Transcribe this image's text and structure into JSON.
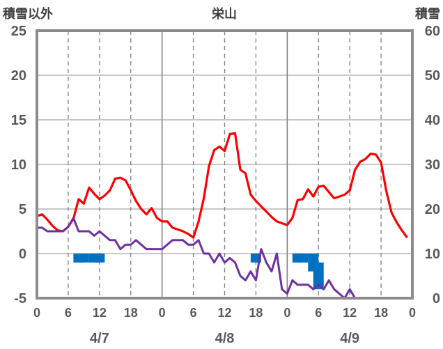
{
  "chart_data": {
    "type": "line",
    "title": "栄山",
    "y_left_label": "積雪以外",
    "y_right_label": "積雪",
    "y_left_ticks": [
      25,
      20,
      15,
      10,
      5,
      0,
      -5
    ],
    "y_right_ticks": [
      60,
      50,
      40,
      30,
      20,
      10,
      0
    ],
    "ylim_left": [
      -5,
      25
    ],
    "ylim_right": [
      0,
      60
    ],
    "x_hours": [
      0,
      72
    ],
    "x_tick_labels": [
      "0",
      "6",
      "12",
      "18",
      "0",
      "6",
      "12",
      "18",
      "0",
      "6",
      "12",
      "18",
      "0"
    ],
    "date_labels": [
      {
        "label": "4/7",
        "hour": 12
      },
      {
        "label": "4/8",
        "hour": 36
      },
      {
        "label": "4/9",
        "hour": 60
      }
    ],
    "grid": "dashed vertical at 6h intervals, solid at day boundaries, solid horizontal every 5 units",
    "series": [
      {
        "color": "#ff0000",
        "axis": "left",
        "x": [
          0,
          1,
          2,
          3,
          4,
          5,
          6,
          7,
          8,
          9,
          10,
          11,
          12,
          13,
          14,
          15,
          16,
          17,
          18,
          19,
          20,
          21,
          22,
          23,
          24,
          25,
          26,
          27,
          28,
          29,
          30,
          31,
          32,
          33,
          34,
          35,
          36,
          37,
          38,
          39,
          40,
          41,
          42,
          43,
          44,
          45,
          46,
          47,
          48,
          49,
          50,
          51,
          52,
          53,
          54,
          55,
          56,
          57,
          58,
          59,
          60,
          61,
          62,
          63,
          64,
          65,
          66,
          67,
          68,
          69,
          70,
          71
        ],
        "y": [
          4.2,
          4.4,
          3.8,
          3.1,
          2.6,
          2.5,
          3.0,
          3.9,
          6.1,
          5.6,
          7.4,
          6.7,
          6.1,
          6.5,
          7.1,
          8.4,
          8.5,
          8.2,
          7.1,
          5.9,
          5.0,
          4.4,
          5.1,
          4.0,
          3.6,
          3.6,
          2.9,
          2.7,
          2.5,
          2.2,
          1.8,
          3.6,
          6.2,
          9.8,
          11.6,
          12.0,
          11.5,
          13.4,
          13.5,
          9.4,
          9.0,
          6.6,
          5.9,
          5.3,
          4.7,
          4.1,
          3.6,
          3.4,
          3.2,
          4.0,
          6.0,
          6.1,
          7.2,
          6.4,
          7.5,
          7.6,
          6.9,
          6.2,
          6.4,
          6.6,
          7.1,
          9.4,
          10.3,
          10.6,
          11.2,
          11.1,
          10.2,
          7.0,
          4.6,
          3.5,
          2.6,
          1.8
        ]
      },
      {
        "color": "#7030a0",
        "axis": "left",
        "x": [
          0,
          1,
          2,
          3,
          4,
          5,
          6,
          7,
          8,
          9,
          10,
          11,
          12,
          13,
          14,
          15,
          16,
          17,
          18,
          19,
          20,
          21,
          22,
          23,
          24,
          25,
          26,
          27,
          28,
          29,
          30,
          31,
          32,
          33,
          34,
          35,
          36,
          37,
          38,
          39,
          40,
          41,
          42,
          43,
          44,
          45,
          46,
          47,
          48,
          49,
          50,
          51,
          52,
          53,
          54,
          55,
          56,
          57,
          58,
          59,
          60,
          61,
          62,
          63,
          64,
          65,
          66,
          67,
          68,
          69,
          70,
          71
        ],
        "y": [
          2.9,
          2.9,
          2.5,
          2.5,
          2.5,
          2.5,
          3.0,
          4.0,
          2.5,
          2.5,
          2.5,
          2.0,
          2.5,
          2.0,
          1.5,
          1.5,
          0.5,
          1.0,
          1.0,
          1.5,
          1.0,
          0.5,
          0.5,
          0.5,
          0.5,
          1.0,
          1.5,
          1.5,
          1.5,
          1.0,
          1.0,
          1.5,
          0.0,
          0.0,
          -1.0,
          0.0,
          -1.0,
          -0.5,
          -1.0,
          -2.5,
          -3.0,
          -2.0,
          -3.0,
          0.5,
          -1.0,
          -2.0,
          0.0,
          -4.0,
          -4.5,
          -3.0,
          -3.5,
          -3.5,
          -3.5,
          -4.0,
          -3.5,
          -4.0,
          -3.0,
          -4.0,
          -4.5,
          -5.0,
          -4.0,
          -5.0,
          -5.0,
          -5.0,
          -5.0,
          -5.0,
          -5.0,
          -5.0,
          -5.0,
          -5.0,
          -5.0,
          -5.0
        ]
      },
      {
        "color": "#0070c0",
        "axis": "left",
        "type": "bar",
        "bars": [
          {
            "x": 8,
            "y0": 0,
            "y1": -1
          },
          {
            "x": 9,
            "y0": 0,
            "y1": -1
          },
          {
            "x": 11,
            "y0": 0,
            "y1": -1
          },
          {
            "x": 12,
            "y0": 0,
            "y1": -1
          },
          {
            "x": 42,
            "y0": 0,
            "y1": -1
          },
          {
            "x": 50,
            "y0": 0,
            "y1": -1
          },
          {
            "x": 51,
            "y0": 0,
            "y1": -1
          },
          {
            "x": 53,
            "y0": 0,
            "y1": -2
          },
          {
            "x": 54,
            "y0": -1,
            "y1": -4
          }
        ]
      }
    ]
  }
}
